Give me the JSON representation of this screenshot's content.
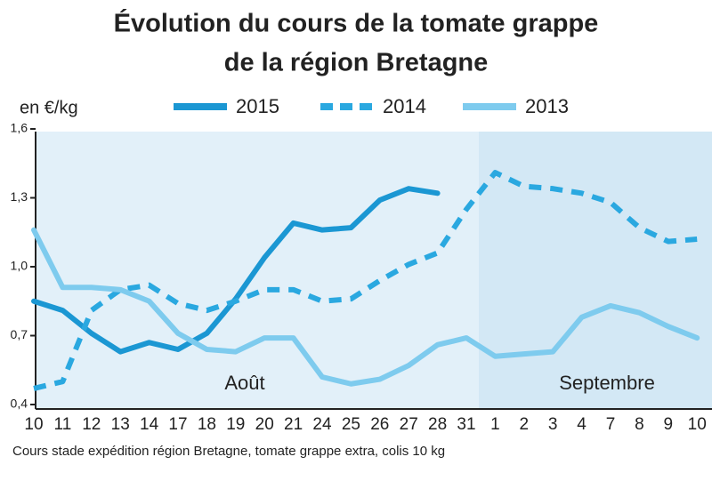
{
  "chart_data": {
    "type": "line",
    "title": [
      "Évolution du cours de la tomate grappe",
      "de la région Bretagne"
    ],
    "y_label": "en €/kg",
    "categories": [
      "10",
      "11",
      "12",
      "13",
      "14",
      "17",
      "18",
      "19",
      "20",
      "21",
      "24",
      "25",
      "26",
      "27",
      "28",
      "31",
      "1",
      "2",
      "3",
      "4",
      "7",
      "8",
      "9",
      "10"
    ],
    "series": [
      {
        "name": "2015",
        "color": "#1b97d3",
        "dash": false,
        "values": [
          0.85,
          0.81,
          0.71,
          0.63,
          0.67,
          0.64,
          0.71,
          0.86,
          1.04,
          1.19,
          1.16,
          1.17,
          1.29,
          1.34,
          1.32,
          null,
          null,
          null,
          null,
          null,
          null,
          null,
          null,
          null
        ]
      },
      {
        "name": "2014",
        "color": "#2aa8e0",
        "dash": true,
        "values": [
          0.47,
          0.5,
          0.81,
          0.9,
          0.92,
          0.84,
          0.81,
          0.85,
          0.9,
          0.9,
          0.85,
          0.86,
          0.94,
          1.01,
          1.06,
          1.25,
          1.41,
          1.35,
          1.34,
          1.32,
          1.28,
          1.17,
          1.11,
          1.12
        ]
      },
      {
        "name": "2013",
        "color": "#7ecbee",
        "dash": false,
        "values": [
          1.16,
          0.91,
          0.91,
          0.9,
          0.85,
          0.71,
          0.64,
          0.63,
          0.69,
          0.69,
          0.52,
          0.49,
          0.51,
          0.57,
          0.66,
          0.69,
          0.61,
          0.62,
          0.63,
          0.78,
          0.83,
          0.8,
          0.74,
          0.69
        ]
      }
    ],
    "ylim": [
      0.4,
      1.6
    ],
    "yticks": [
      {
        "value": 0.4,
        "label": "0,4"
      },
      {
        "value": 0.7,
        "label": "0,7"
      },
      {
        "value": 1.0,
        "label": "1,0"
      },
      {
        "value": 1.3,
        "label": "1,3"
      },
      {
        "value": 1.6,
        "label": "1,6"
      }
    ],
    "annotations": [
      "Août",
      "Septembre"
    ],
    "note": "Cours stade expédition région Bretagne, tomate grappe extra, colis 10 kg"
  }
}
